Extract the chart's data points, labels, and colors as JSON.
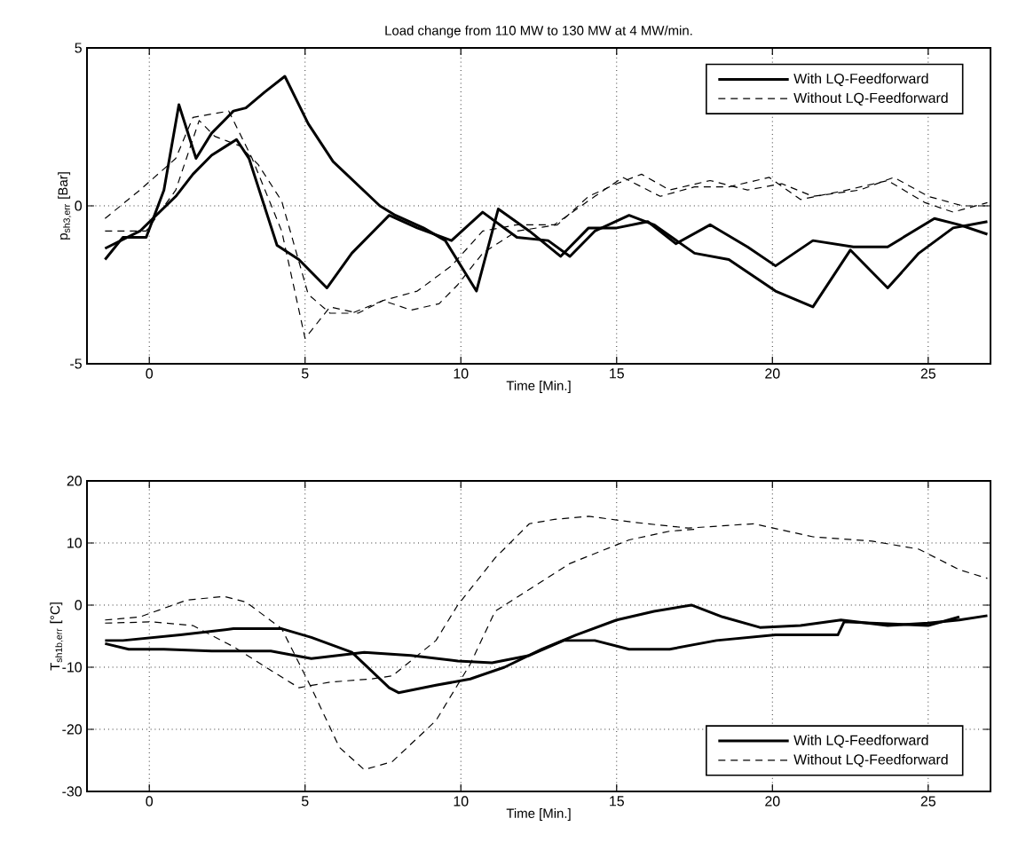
{
  "chart_data": [
    {
      "type": "line",
      "title": "Load change from 110 MW to 130 MW at 4 MW/min.",
      "xlabel": "Time [Min.]",
      "ylabel": "p$_{sh3,err}$ [Bar]",
      "xlim": [
        -2,
        27
      ],
      "ylim": [
        -5,
        5
      ],
      "xticks": [
        0,
        5,
        10,
        15,
        20,
        25
      ],
      "yticks": [
        -5,
        0,
        5
      ],
      "grid": true,
      "legend": "top right",
      "series": [
        {
          "name": "With LQ-Feedforward",
          "color": "#000000",
          "line_style": "solid",
          "x": [
            -1.42,
            -0.85,
            -0.1,
            0.47,
            0.95,
            1.5,
            2.0,
            2.7,
            3.1,
            3.7,
            4.35,
            5.1,
            5.9,
            7.4,
            7.9,
            8.8,
            9.5,
            10.5,
            11.2,
            12.2,
            13.2,
            14.1,
            15,
            16,
            16.9,
            18,
            19.2,
            20.1,
            21.3,
            22.6,
            23.7,
            25.2,
            26,
            26.9
          ],
          "values": [
            -1.7,
            -1,
            -1.0,
            0.5,
            3.2,
            1.5,
            2.3,
            3.0,
            3.1,
            3.6,
            4.1,
            2.6,
            1.4,
            0,
            -0.3,
            -0.7,
            -1.1,
            -2.7,
            -0.1,
            -0.8,
            -1.6,
            -0.7,
            -0.7,
            -0.5,
            -1.2,
            -0.6,
            -1.3,
            -1.9,
            -1.1,
            -1.3,
            -1.3,
            -0.4,
            -0.6,
            -0.9
          ]
        },
        {
          "color": "#000000",
          "line_style": "solid",
          "x": [
            -1.42,
            -0.3,
            0.85,
            1.4,
            2.0,
            2.8,
            3.2,
            4.1,
            4.8,
            5.7,
            6.5,
            7.7,
            8.6,
            9.7,
            10.7,
            11.8,
            12.8,
            13.5,
            14.3,
            15.4,
            16.2,
            17.5,
            18.6,
            20.1,
            21.3,
            22.5,
            23.2,
            23.7,
            24.7,
            25.8,
            26.9
          ],
          "values": [
            -1.35,
            -0.8,
            0.3,
            1.0,
            1.6,
            2.1,
            1.5,
            -1.25,
            -1.7,
            -2.6,
            -1.5,
            -0.3,
            -0.7,
            -1.1,
            -0.2,
            -1.0,
            -1.1,
            -1.6,
            -0.8,
            -0.3,
            -0.6,
            -1.5,
            -1.7,
            -2.7,
            -3.2,
            -1.4,
            -2.1,
            -2.6,
            -1.5,
            -0.7,
            -0.5
          ]
        },
        {
          "name": "Without LQ-Feedforward",
          "color": "#000000",
          "line_style": "dashed",
          "x": [
            -1.42,
            -0.3,
            0.85,
            1.4,
            2.55,
            3.3,
            4.25,
            5.0,
            5.8,
            6.7,
            7.5,
            8.6,
            9.7,
            10.7,
            11.8,
            13,
            14.3,
            15.2,
            16.4,
            17.5,
            18.6,
            19.9,
            20.9,
            22.4,
            23.7,
            24.9,
            25.8,
            26.9
          ],
          "values": [
            -0.4,
            0.5,
            1.5,
            2.8,
            3.0,
            1.5,
            -0.8,
            -4.2,
            -3.2,
            -3.4,
            -3.0,
            -2.7,
            -1.9,
            -0.8,
            -0.6,
            -0.6,
            0.3,
            0.9,
            0.3,
            0.6,
            0.6,
            0.9,
            0.2,
            0.5,
            0.8,
            0.1,
            -0.2,
            0.1
          ]
        },
        {
          "color": "#000000",
          "line_style": "dashed",
          "x": [
            -1.42,
            -0.1,
            0.85,
            1.6,
            2.1,
            2.9,
            3.5,
            4.25,
            5.1,
            5.8,
            6.5,
            7.5,
            8.4,
            9.3,
            9.9,
            10.7,
            11.8,
            13.1,
            14.1,
            15,
            15.8,
            16.7,
            18,
            19.2,
            20.3,
            21.3,
            22.8,
            23.9,
            25,
            26.1,
            26.9
          ],
          "values": [
            -0.8,
            -0.8,
            0.5,
            2.7,
            2.2,
            1.9,
            1.3,
            0.15,
            -2.8,
            -3.4,
            -3.4,
            -3.0,
            -3.3,
            -3.1,
            -2.5,
            -1.5,
            -0.8,
            -0.6,
            0.3,
            0.7,
            1.0,
            0.5,
            0.8,
            0.5,
            0.7,
            0.3,
            0.5,
            0.9,
            0.3,
            0,
            0
          ]
        }
      ]
    },
    {
      "type": "line",
      "xlabel": "Time [Min.]",
      "ylabel": "T$_{sh1b,err}$ [°C]",
      "xlim": [
        -2,
        27
      ],
      "ylim": [
        -30,
        20
      ],
      "xticks": [
        0,
        5,
        10,
        15,
        20,
        25
      ],
      "yticks": [
        -30,
        -20,
        -10,
        0,
        10,
        20
      ],
      "grid": true,
      "legend": "bottom right",
      "series": [
        {
          "name": "With LQ-Feedforward",
          "color": "#000000",
          "line_style": "solid",
          "x": [
            -1.42,
            -0.85,
            1,
            2.7,
            4.25,
            5.2,
            6.5,
            7.7,
            8.0,
            9.2,
            10.3,
            11.4,
            12.6,
            13.7,
            15,
            16.2,
            17.4,
            18.4,
            19.6,
            20.9,
            22.2,
            23.7,
            25,
            26,
            26.9
          ],
          "values": [
            -5.7,
            -5.7,
            -4.8,
            -3.8,
            -3.8,
            -5.2,
            -7.6,
            -13.3,
            -14.1,
            -12.9,
            -11.9,
            -10,
            -7.1,
            -4.8,
            -2.4,
            -1,
            0,
            -1.9,
            -3.6,
            -3.3,
            -2.4,
            -3.3,
            -2.9,
            -2.4,
            -1.7
          ]
        },
        {
          "color": "#000000",
          "line_style": "solid",
          "x": [
            -1.42,
            -0.66,
            0.47,
            2,
            3.9,
            5.2,
            6.9,
            8.4,
            9.9,
            11,
            12.2,
            13.3,
            14.3,
            15.4,
            16.7,
            18.2,
            20.1,
            22.1,
            22.3,
            23.7,
            25,
            26
          ],
          "values": [
            -6.2,
            -7.1,
            -7.1,
            -7.4,
            -7.4,
            -8.6,
            -7.6,
            -8.1,
            -9.0,
            -9.3,
            -8.1,
            -5.7,
            -5.7,
            -7.1,
            -7.1,
            -5.7,
            -4.8,
            -4.8,
            -2.7,
            -3.0,
            -3.3,
            -1.9
          ]
        },
        {
          "name": "Without LQ-Feedforward",
          "color": "#000000",
          "line_style": "dashed",
          "x": [
            -1.42,
            -0.3,
            1.2,
            2.4,
            3.1,
            4.25,
            5.2,
            6.1,
            6.9,
            7.8,
            9.2,
            10.3,
            11.1,
            13.5,
            15.4,
            16.7,
            17.5
          ],
          "values": [
            -2.4,
            -1.9,
            0.8,
            1.4,
            0.5,
            -3.8,
            -13.3,
            -22.9,
            -26.5,
            -25.2,
            -18.6,
            -9.5,
            -1.0,
            6.7,
            10.5,
            11.9,
            12.2
          ]
        },
        {
          "color": "#000000",
          "line_style": "dashed",
          "x": [
            -1.42,
            0.1,
            1.4,
            2.7,
            3.9,
            4.8,
            5.8,
            7.1,
            7.8,
            9.2,
            9.9,
            11.1,
            12.2,
            13,
            14.1,
            15.6,
            17.3,
            19.4,
            21.3,
            23.2,
            24.7,
            26,
            26.9
          ],
          "values": [
            -2.9,
            -2.7,
            -3.3,
            -6.7,
            -10.5,
            -13.3,
            -12.4,
            -11.9,
            -11.4,
            -5.7,
            0,
            7.6,
            13.1,
            13.8,
            14.3,
            13.3,
            12.4,
            13.1,
            11,
            10.3,
            9,
            5.7,
            4.3
          ]
        }
      ]
    }
  ]
}
